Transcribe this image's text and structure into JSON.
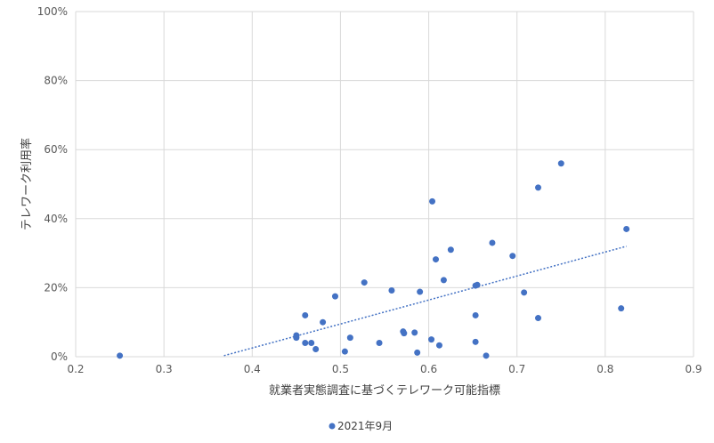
{
  "chart_data": {
    "type": "scatter",
    "title": "",
    "xlabel": "就業者実態調査に基づくテレワーク可能指標",
    "ylabel": "テレワーク利用率",
    "xlim": [
      0.2,
      0.9
    ],
    "ylim": [
      0,
      100
    ],
    "x_ticks": [
      "0.2",
      "0.3",
      "0.4",
      "0.5",
      "0.6",
      "0.7",
      "0.8",
      "0.9"
    ],
    "y_ticks": [
      "0%",
      "20%",
      "40%",
      "60%",
      "80%",
      "100%"
    ],
    "grid": true,
    "legend_position": "bottom",
    "marker_color": "#4472c4",
    "series": [
      {
        "name": "2021年9月",
        "points": [
          [
            0.25,
            0.3
          ],
          [
            0.45,
            5.5
          ],
          [
            0.45,
            6.2
          ],
          [
            0.46,
            12.0
          ],
          [
            0.46,
            4.0
          ],
          [
            0.467,
            4.0
          ],
          [
            0.472,
            2.2
          ],
          [
            0.48,
            10.0
          ],
          [
            0.494,
            17.5
          ],
          [
            0.505,
            1.5
          ],
          [
            0.511,
            5.5
          ],
          [
            0.527,
            21.5
          ],
          [
            0.544,
            4.0
          ],
          [
            0.558,
            19.2
          ],
          [
            0.571,
            7.3
          ],
          [
            0.572,
            6.8
          ],
          [
            0.584,
            7.0
          ],
          [
            0.587,
            1.2
          ],
          [
            0.59,
            18.8
          ],
          [
            0.603,
            5.0
          ],
          [
            0.604,
            45.0
          ],
          [
            0.608,
            28.2
          ],
          [
            0.612,
            3.3
          ],
          [
            0.617,
            22.2
          ],
          [
            0.625,
            31.0
          ],
          [
            0.653,
            20.6
          ],
          [
            0.655,
            20.8
          ],
          [
            0.653,
            4.3
          ],
          [
            0.653,
            12.0
          ],
          [
            0.665,
            0.3
          ],
          [
            0.672,
            33.0
          ],
          [
            0.695,
            29.2
          ],
          [
            0.708,
            18.6
          ],
          [
            0.724,
            49.0
          ],
          [
            0.724,
            11.2
          ],
          [
            0.75,
            56.0
          ],
          [
            0.818,
            14.0
          ],
          [
            0.824,
            37.0
          ]
        ]
      }
    ],
    "trendline": {
      "type": "linear",
      "x_start": 0.368,
      "y_start": 0.3,
      "x_end": 0.824,
      "y_end": 32.0
    }
  }
}
